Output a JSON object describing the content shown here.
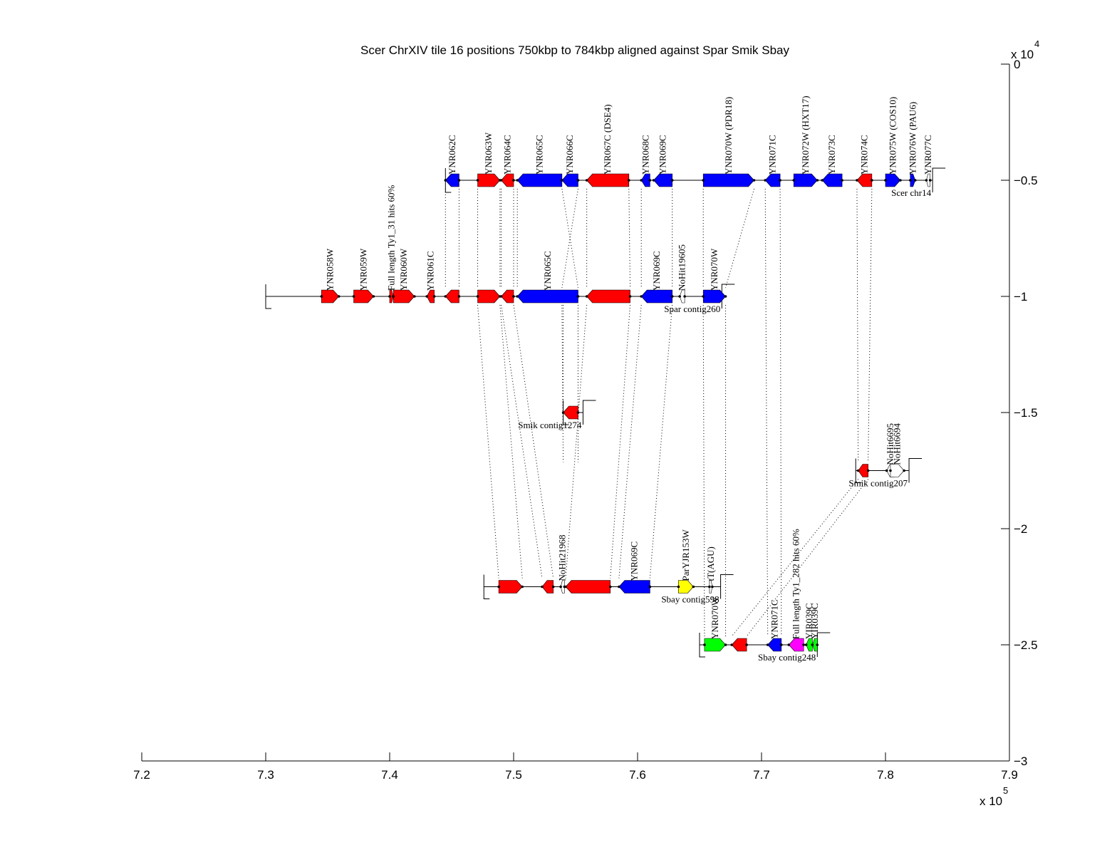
{
  "chart_data": {
    "type": "genome-alignment",
    "title": "Scer ChrXIV tile 16 positions 750kbp to 784kbp aligned against Spar Smik Sbay",
    "xlabel": "",
    "ylabel": "",
    "xlim": [
      720000,
      790000
    ],
    "ylim": [
      -30000,
      0
    ],
    "x_ticks": [
      "7.2",
      "7.3",
      "7.4",
      "7.5",
      "7.6",
      "7.7",
      "7.8",
      "7.9"
    ],
    "x_tick_values": [
      720000,
      730000,
      740000,
      750000,
      760000,
      770000,
      780000,
      790000
    ],
    "x_multiplier": "x 10",
    "x_exponent": "5",
    "y_ticks": [
      "0",
      "−0.5",
      "−1",
      "−1.5",
      "−2",
      "−2.5",
      "−3"
    ],
    "y_tick_values": [
      0,
      -5000,
      -10000,
      -15000,
      -20000,
      -25000,
      -30000
    ],
    "y_multiplier": "x 10",
    "y_exponent": "4",
    "colors": {
      "red": "#ff0000",
      "blue": "#0000ff",
      "yellow": "#ffff00",
      "green": "#00ff00",
      "magenta": "#ff00ff",
      "white": "#ffffff"
    },
    "tracks": [
      {
        "name": "Scer chr14",
        "y": -5000,
        "start": 744500,
        "end": 783800,
        "end_marker": 783800,
        "genes": [
          {
            "label": "YNR062C",
            "start": 744500,
            "end": 745600,
            "strand": "-",
            "color": "blue"
          },
          {
            "label": "YNR063W",
            "start": 747100,
            "end": 748900,
            "strand": "+",
            "color": "red"
          },
          {
            "label": "YNR064C",
            "start": 749000,
            "end": 750000,
            "strand": "-",
            "color": "red"
          },
          {
            "label": "YNR065C",
            "start": 750300,
            "end": 753900,
            "strand": "-",
            "color": "blue"
          },
          {
            "label": "YNR066C",
            "start": 753900,
            "end": 755200,
            "strand": "-",
            "color": "blue"
          },
          {
            "label": "YNR067C (DSE4)",
            "start": 755900,
            "end": 759300,
            "strand": "-",
            "color": "red"
          },
          {
            "label": "YNR068C",
            "start": 760300,
            "end": 761000,
            "strand": "-",
            "color": "blue"
          },
          {
            "label": "YNR069C",
            "start": 761300,
            "end": 762800,
            "strand": "-",
            "color": "blue"
          },
          {
            "label": "YNR070W (PDR18)",
            "start": 765300,
            "end": 769400,
            "strand": "+",
            "color": "blue"
          },
          {
            "label": "YNR071C",
            "start": 770300,
            "end": 771500,
            "strand": "-",
            "color": "blue"
          },
          {
            "label": "YNR072W (HXT17)",
            "start": 772600,
            "end": 774500,
            "strand": "+",
            "color": "blue"
          },
          {
            "label": "YNR073C",
            "start": 774900,
            "end": 776500,
            "strand": "-",
            "color": "blue"
          },
          {
            "label": "YNR074C",
            "start": 777700,
            "end": 778900,
            "strand": "-",
            "color": "red"
          },
          {
            "label": "YNR075W (COS10)",
            "start": 780000,
            "end": 781200,
            "strand": "+",
            "color": "blue"
          },
          {
            "label": "YNR076W (PAU6)",
            "start": 782000,
            "end": 782400,
            "strand": "+",
            "color": "blue"
          },
          {
            "label": "YNR077C",
            "start": 783300,
            "end": 783600,
            "strand": "-",
            "color": "white"
          }
        ]
      },
      {
        "name": "Spar contig260",
        "y": -10000,
        "start": 730000,
        "end": 766800,
        "genes": [
          {
            "label": "YNR058W",
            "start": 734500,
            "end": 735900,
            "strand": "+",
            "color": "red"
          },
          {
            "label": "YNR059W",
            "start": 737100,
            "end": 738700,
            "strand": "+",
            "color": "red"
          },
          {
            "label": "Full length Ty1_31 hits 60%",
            "start": 740000,
            "end": 740300,
            "strand": "+",
            "color": "red"
          },
          {
            "label": "YNR060W",
            "start": 740300,
            "end": 742000,
            "strand": "+",
            "color": "red"
          },
          {
            "label": "YNR061C",
            "start": 743000,
            "end": 743600,
            "strand": "-",
            "color": "red"
          },
          {
            "label": "",
            "start": 744500,
            "end": 745600,
            "strand": "-",
            "color": "red"
          },
          {
            "label": "",
            "start": 747100,
            "end": 748900,
            "strand": "+",
            "color": "red"
          },
          {
            "label": "",
            "start": 749000,
            "end": 750000,
            "strand": "-",
            "color": "red"
          },
          {
            "label": "YNR065C",
            "start": 750300,
            "end": 755200,
            "strand": "-",
            "color": "blue"
          },
          {
            "label": "",
            "start": 755900,
            "end": 759400,
            "strand": "-",
            "color": "red"
          },
          {
            "label": "YNR069C",
            "start": 760300,
            "end": 762800,
            "strand": "-",
            "color": "blue"
          },
          {
            "label": "NoHit19605",
            "start": 763400,
            "end": 763800,
            "strand": "-",
            "color": "white"
          },
          {
            "label": "YNR070W",
            "start": 765300,
            "end": 767100,
            "strand": "+",
            "color": "blue"
          }
        ]
      },
      {
        "name": "Smik contig1274",
        "y": -15000,
        "start": 754000,
        "end": 755600,
        "genes": [
          {
            "label": "",
            "start": 754000,
            "end": 755200,
            "strand": "-",
            "color": "red"
          }
        ]
      },
      {
        "name": "Smik contig207",
        "y": -17500,
        "start": 777600,
        "end": 781900,
        "genes": [
          {
            "label": "",
            "start": 777800,
            "end": 778600,
            "strand": "-",
            "color": "red"
          },
          {
            "label": "NoHit6695",
            "start": 780100,
            "end": 780700,
            "strand": "-",
            "color": "white"
          },
          {
            "label": "NoHit6694",
            "start": 780400,
            "end": 781500,
            "strand": "+",
            "color": "white"
          }
        ]
      },
      {
        "name": "Sbay contig598",
        "y": -22500,
        "start": 747600,
        "end": 766700,
        "genes": [
          {
            "label": "",
            "start": 748800,
            "end": 750700,
            "strand": "+",
            "color": "red"
          },
          {
            "label": "",
            "start": 752300,
            "end": 753200,
            "strand": "-",
            "color": "red"
          },
          {
            "label": "NoHit21968",
            "start": 753800,
            "end": 754100,
            "strand": "-",
            "color": "white"
          },
          {
            "label": "",
            "start": 754200,
            "end": 757800,
            "strand": "-",
            "color": "red"
          },
          {
            "label": "YNR069C",
            "start": 758500,
            "end": 761000,
            "strand": "-",
            "color": "blue"
          },
          {
            "label": "ParYJR153W",
            "start": 763300,
            "end": 764500,
            "strand": "+",
            "color": "yellow"
          },
          {
            "label": "tT(AGU)",
            "start": 765800,
            "end": 765900,
            "strand": "+",
            "color": "white"
          }
        ]
      },
      {
        "name": "Sbay contig248",
        "y": -25000,
        "start": 765000,
        "end": 774500,
        "genes": [
          {
            "label": "YNR070W",
            "start": 765400,
            "end": 767100,
            "strand": "+",
            "color": "green"
          },
          {
            "label": "",
            "start": 767600,
            "end": 768800,
            "strand": "-",
            "color": "red"
          },
          {
            "label": "YNR071C",
            "start": 770500,
            "end": 771600,
            "strand": "-",
            "color": "blue"
          },
          {
            "label": "Full length Ty1_282 hits 60%",
            "start": 772200,
            "end": 773400,
            "strand": "-",
            "color": "magenta"
          },
          {
            "label": "YIR039C",
            "start": 773600,
            "end": 774100,
            "strand": "-",
            "color": "green"
          },
          {
            "label": "YIR039C",
            "start": 774100,
            "end": 774500,
            "strand": "-",
            "color": "green"
          }
        ]
      }
    ],
    "links": [
      [
        [
          0,
          744500
        ],
        [
          1,
          744500
        ]
      ],
      [
        [
          0,
          745600
        ],
        [
          1,
          745600
        ]
      ],
      [
        [
          0,
          747100
        ],
        [
          1,
          747100
        ]
      ],
      [
        [
          0,
          748900
        ],
        [
          1,
          748900
        ]
      ],
      [
        [
          0,
          749000
        ],
        [
          1,
          749000
        ]
      ],
      [
        [
          0,
          750000
        ],
        [
          1,
          750000
        ]
      ],
      [
        [
          0,
          750300
        ],
        [
          1,
          750300
        ]
      ],
      [
        [
          0,
          753900
        ],
        [
          1,
          755200
        ]
      ],
      [
        [
          0,
          755200
        ],
        [
          1,
          753900
        ]
      ],
      [
        [
          0,
          755900
        ],
        [
          1,
          755900
        ]
      ],
      [
        [
          0,
          759300
        ],
        [
          1,
          759400
        ]
      ],
      [
        [
          0,
          760300
        ],
        [
          1,
          760300
        ]
      ],
      [
        [
          0,
          762800
        ],
        [
          1,
          762800
        ]
      ],
      [
        [
          0,
          765300
        ],
        [
          1,
          765300
        ]
      ],
      [
        [
          0,
          769400
        ],
        [
          1,
          767100
        ]
      ],
      [
        [
          1,
          747100
        ],
        [
          4,
          748800
        ]
      ],
      [
        [
          1,
          748900
        ],
        [
          4,
          750700
        ]
      ],
      [
        [
          1,
          749000
        ],
        [
          4,
          752300
        ]
      ],
      [
        [
          1,
          750000
        ],
        [
          4,
          753200
        ]
      ],
      [
        [
          1,
          753900
        ],
        [
          3,
          754000
        ]
      ],
      [
        [
          1,
          755200
        ],
        [
          3,
          755200
        ]
      ],
      [
        [
          1,
          754000
        ],
        [
          2,
          754000
        ]
      ],
      [
        [
          1,
          755200
        ],
        [
          2,
          755200
        ]
      ],
      [
        [
          1,
          755900
        ],
        [
          4,
          754200
        ]
      ],
      [
        [
          1,
          759400
        ],
        [
          4,
          757800
        ]
      ],
      [
        [
          1,
          760300
        ],
        [
          4,
          758500
        ]
      ],
      [
        [
          1,
          762800
        ],
        [
          4,
          761000
        ]
      ],
      [
        [
          1,
          765300
        ],
        [
          5,
          765400
        ]
      ],
      [
        [
          1,
          767100
        ],
        [
          5,
          767100
        ]
      ],
      [
        [
          0,
          770300
        ],
        [
          5,
          770500
        ]
      ],
      [
        [
          0,
          771500
        ],
        [
          5,
          771600
        ]
      ],
      [
        [
          0,
          777700
        ],
        [
          3,
          777800
        ]
      ],
      [
        [
          0,
          778900
        ],
        [
          3,
          778600
        ]
      ],
      [
        [
          3,
          777800
        ],
        [
          5,
          767600
        ]
      ],
      [
        [
          3,
          778600
        ],
        [
          5,
          768800
        ]
      ]
    ]
  }
}
